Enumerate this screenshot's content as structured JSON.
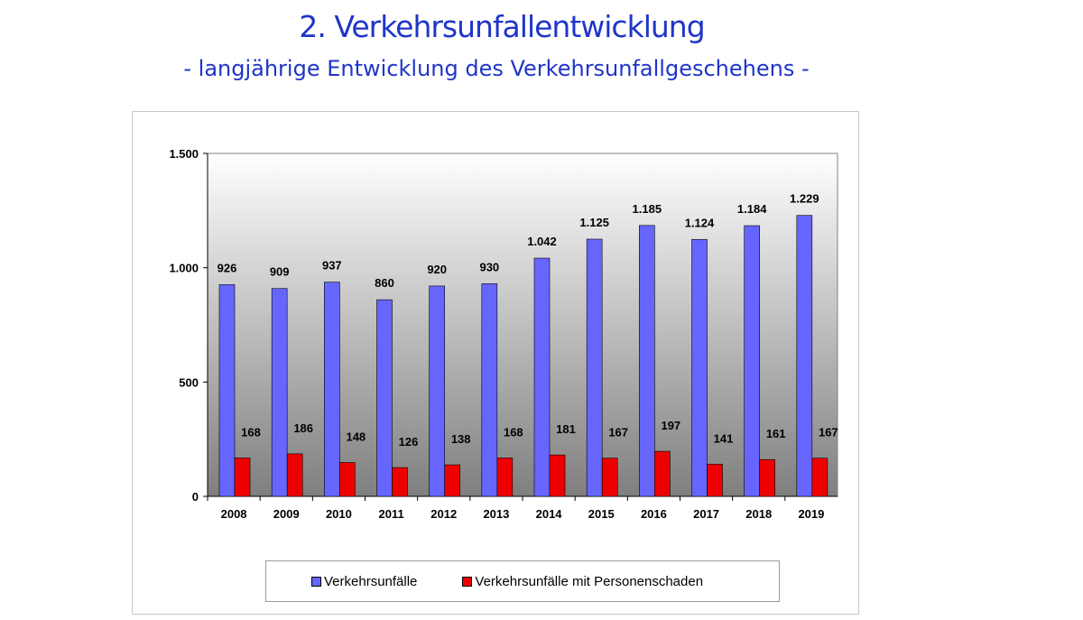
{
  "header": {
    "title": "2. Verkehrsunfallentwicklung",
    "subtitle": "- langjährige Entwicklung des Verkehrsunfallgeschehens -"
  },
  "colors": {
    "series1": "#6666ff",
    "series2": "#ee0000",
    "plot_top": "#ffffff",
    "plot_bottom": "#7f7f7f"
  },
  "chart_data": {
    "type": "bar",
    "title": "",
    "xlabel": "",
    "ylabel": "",
    "ylim": [
      0,
      1500
    ],
    "yticks": [
      0,
      500,
      1000,
      1500
    ],
    "ytick_labels": [
      "0",
      "500",
      "1.000",
      "1.500"
    ],
    "grid": false,
    "legend_position": "bottom",
    "categories": [
      "2008",
      "2009",
      "2010",
      "2011",
      "2012",
      "2013",
      "2014",
      "2015",
      "2016",
      "2017",
      "2018",
      "2019"
    ],
    "series": [
      {
        "name": "Verkehrsunfälle",
        "values": [
          926,
          909,
          937,
          860,
          920,
          930,
          1042,
          1125,
          1185,
          1124,
          1184,
          1229
        ],
        "labels": [
          "926",
          "909",
          "937",
          "860",
          "920",
          "930",
          "1.042",
          "1.125",
          "1.185",
          "1.124",
          "1.184",
          "1.229"
        ]
      },
      {
        "name": "Verkehrsunfälle mit Personenschaden",
        "values": [
          168,
          186,
          148,
          126,
          138,
          168,
          181,
          167,
          197,
          141,
          161,
          167
        ],
        "labels": [
          "168",
          "186",
          "148",
          "126",
          "138",
          "168",
          "181",
          "167",
          "197",
          "141",
          "161",
          "167"
        ]
      }
    ]
  }
}
